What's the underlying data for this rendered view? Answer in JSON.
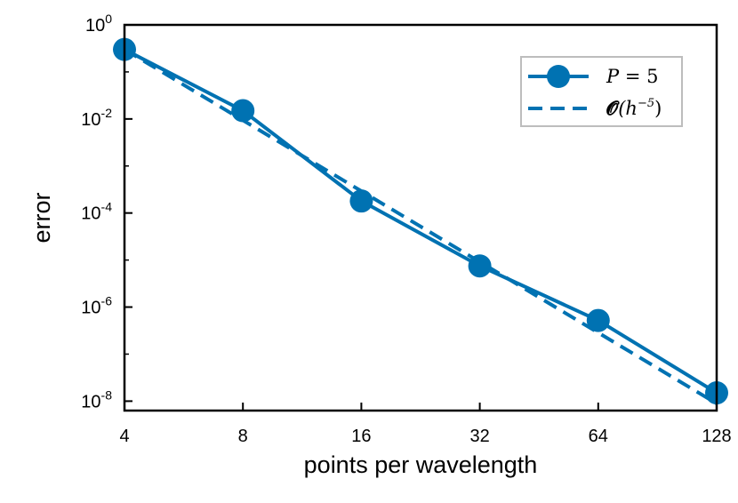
{
  "chart_data": {
    "type": "line",
    "title": "",
    "xlabel": "points per wavelength",
    "ylabel": "error",
    "xscale": "log2",
    "yscale": "log10",
    "x_ticks": [
      4,
      8,
      16,
      32,
      64,
      128
    ],
    "x_tick_labels": [
      "4",
      "8",
      "16",
      "32",
      "64",
      "128"
    ],
    "y_ticks": [
      1,
      0.01,
      0.0001,
      1e-06,
      1e-08
    ],
    "y_tick_labels": [
      {
        "base": "10",
        "exp": "0"
      },
      {
        "base": "10",
        "exp": "-2"
      },
      {
        "base": "10",
        "exp": "-4"
      },
      {
        "base": "10",
        "exp": "-6"
      },
      {
        "base": "10",
        "exp": "-8"
      }
    ],
    "xlim": [
      4,
      128
    ],
    "ylim": [
      6.3e-09,
      1
    ],
    "legend_position": "top-right",
    "series": [
      {
        "name": "P = 5",
        "label_math": {
          "var": "P",
          "op": " = ",
          "val": "5"
        },
        "style": "solid-marker",
        "color": "#0072b2",
        "x": [
          4,
          8,
          16,
          32,
          64,
          128
        ],
        "y": [
          0.3,
          0.015,
          0.00018,
          7.5e-06,
          5.2e-07,
          1.5e-08
        ]
      },
      {
        "name": "O(h^-5)",
        "label_math": {
          "op": "𝓞",
          "open": "(h",
          "exp": "−5",
          "close": ")"
        },
        "style": "dashed",
        "color": "#0072b2",
        "x": [
          4,
          128
        ],
        "y": [
          0.3,
          8.9e-09
        ]
      }
    ]
  }
}
